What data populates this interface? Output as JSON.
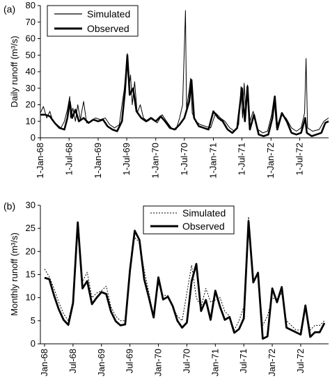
{
  "chart_data": [
    {
      "panel_label": "(a)",
      "type": "line",
      "ylabel": "Daily runoff (m³/s)",
      "ylim": [
        0,
        80
      ],
      "yticks": [
        "0",
        "10",
        "20",
        "30",
        "40",
        "50",
        "60",
        "70",
        "80"
      ],
      "xlim": [
        "1968-01-01",
        "1972-12-31"
      ],
      "xticks": [
        {
          "date": "1968-01-01",
          "label": "1-Jan-68"
        },
        {
          "date": "1968-07-01",
          "label": "1-Jul-68"
        },
        {
          "date": "1969-01-01",
          "label": "1-Jan-69"
        },
        {
          "date": "1969-07-01",
          "label": "1-Jul-69"
        },
        {
          "date": "1970-01-01",
          "label": "1-Jan-70"
        },
        {
          "date": "1970-07-01",
          "label": "1-Jul-70"
        },
        {
          "date": "1971-01-01",
          "label": "1-Jan-71"
        },
        {
          "date": "1971-07-01",
          "label": "1-Jul-71"
        },
        {
          "date": "1972-01-01",
          "label": "1-Jan-72"
        },
        {
          "date": "1972-07-01",
          "label": "1-Jul-72"
        }
      ],
      "legend_position": "top-left",
      "series": [
        {
          "name": "Simulated",
          "style": "thin",
          "points": [
            [
              "1968-01-01",
              15
            ],
            [
              "1968-01-20",
              19
            ],
            [
              "1968-02-10",
              12
            ],
            [
              "1968-03-01",
              16
            ],
            [
              "1968-03-20",
              10
            ],
            [
              "1968-04-15",
              8
            ],
            [
              "1968-05-10",
              6
            ],
            [
              "1968-06-01",
              10
            ],
            [
              "1968-06-20",
              17
            ],
            [
              "1968-07-05",
              25
            ],
            [
              "1968-07-10",
              12
            ],
            [
              "1968-07-25",
              18
            ],
            [
              "1968-08-10",
              10
            ],
            [
              "1968-08-25",
              20
            ],
            [
              "1968-09-10",
              11
            ],
            [
              "1968-10-01",
              22
            ],
            [
              "1968-10-20",
              9
            ],
            [
              "1968-11-15",
              10
            ],
            [
              "1968-12-15",
              12
            ],
            [
              "1969-01-15",
              11
            ],
            [
              "1969-02-15",
              12
            ],
            [
              "1969-03-15",
              8
            ],
            [
              "1969-04-15",
              6
            ],
            [
              "1969-05-15",
              8
            ],
            [
              "1969-06-01",
              20
            ],
            [
              "1969-06-15",
              29
            ],
            [
              "1969-06-25",
              40
            ],
            [
              "1969-07-05",
              51
            ],
            [
              "1969-07-15",
              30
            ],
            [
              "1969-07-25",
              38
            ],
            [
              "1969-08-05",
              20
            ],
            [
              "1969-08-20",
              34
            ],
            [
              "1969-09-05",
              15
            ],
            [
              "1969-09-25",
              20
            ],
            [
              "1969-10-15",
              12
            ],
            [
              "1969-11-10",
              10
            ],
            [
              "1969-12-10",
              12
            ],
            [
              "1970-01-10",
              9
            ],
            [
              "1970-02-10",
              14
            ],
            [
              "1970-03-10",
              10
            ],
            [
              "1970-04-10",
              6
            ],
            [
              "1970-05-10",
              5
            ],
            [
              "1970-06-01",
              12
            ],
            [
              "1970-06-20",
              20
            ],
            [
              "1970-07-08",
              77
            ],
            [
              "1970-07-15",
              18
            ],
            [
              "1970-08-01",
              29
            ],
            [
              "1970-08-10",
              36
            ],
            [
              "1970-08-20",
              15
            ],
            [
              "1970-09-10",
              10
            ],
            [
              "1970-10-10",
              8
            ],
            [
              "1970-11-10",
              7
            ],
            [
              "1970-12-15",
              6
            ],
            [
              "1971-01-15",
              15
            ],
            [
              "1971-02-15",
              12
            ],
            [
              "1971-03-15",
              10
            ],
            [
              "1971-04-15",
              6
            ],
            [
              "1971-05-15",
              4
            ],
            [
              "1971-06-10",
              8
            ],
            [
              "1971-06-25",
              31
            ],
            [
              "1971-07-05",
              12
            ],
            [
              "1971-07-15",
              33
            ],
            [
              "1971-07-25",
              15
            ],
            [
              "1971-08-05",
              32
            ],
            [
              "1971-08-15",
              8
            ],
            [
              "1971-09-10",
              16
            ],
            [
              "1971-10-10",
              5
            ],
            [
              "1971-11-10",
              3
            ],
            [
              "1971-12-10",
              4
            ],
            [
              "1972-01-05",
              14
            ],
            [
              "1972-01-20",
              24
            ],
            [
              "1972-02-05",
              6
            ],
            [
              "1972-03-05",
              14
            ],
            [
              "1972-04-05",
              12
            ],
            [
              "1972-05-10",
              6
            ],
            [
              "1972-06-10",
              4
            ],
            [
              "1972-07-10",
              6
            ],
            [
              "1972-08-01",
              15
            ],
            [
              "1972-08-10",
              48
            ],
            [
              "1972-08-20",
              6
            ],
            [
              "1972-09-20",
              4
            ],
            [
              "1972-11-01",
              5
            ],
            [
              "1972-12-01",
              10
            ],
            [
              "1972-12-31",
              12
            ]
          ]
        },
        {
          "name": "Observed",
          "style": "thick",
          "points": [
            [
              "1968-01-01",
              14
            ],
            [
              "1968-02-01",
              14
            ],
            [
              "1968-03-01",
              13
            ],
            [
              "1968-04-01",
              9
            ],
            [
              "1968-05-01",
              6
            ],
            [
              "1968-06-01",
              5
            ],
            [
              "1968-06-20",
              12
            ],
            [
              "1968-07-05",
              22
            ],
            [
              "1968-07-20",
              12
            ],
            [
              "1968-08-10",
              17
            ],
            [
              "1968-09-01",
              10
            ],
            [
              "1968-10-01",
              12
            ],
            [
              "1968-11-01",
              9
            ],
            [
              "1968-12-01",
              11
            ],
            [
              "1969-01-01",
              10
            ],
            [
              "1969-02-01",
              11
            ],
            [
              "1969-03-01",
              7
            ],
            [
              "1969-04-01",
              5
            ],
            [
              "1969-05-01",
              4
            ],
            [
              "1969-06-01",
              10
            ],
            [
              "1969-06-20",
              28
            ],
            [
              "1969-07-05",
              50
            ],
            [
              "1969-07-20",
              26
            ],
            [
              "1969-08-10",
              30
            ],
            [
              "1969-09-01",
              16
            ],
            [
              "1969-10-01",
              12
            ],
            [
              "1969-11-01",
              10
            ],
            [
              "1969-12-01",
              12
            ],
            [
              "1970-01-01",
              10
            ],
            [
              "1970-02-01",
              13
            ],
            [
              "1970-03-01",
              10
            ],
            [
              "1970-04-01",
              6
            ],
            [
              "1970-05-01",
              5
            ],
            [
              "1970-06-01",
              8
            ],
            [
              "1970-07-01",
              12
            ],
            [
              "1970-08-01",
              22
            ],
            [
              "1970-08-15",
              35
            ],
            [
              "1970-09-01",
              12
            ],
            [
              "1970-10-01",
              7
            ],
            [
              "1970-11-01",
              6
            ],
            [
              "1970-12-01",
              5
            ],
            [
              "1971-01-01",
              16
            ],
            [
              "1971-02-01",
              12
            ],
            [
              "1971-03-01",
              10
            ],
            [
              "1971-04-01",
              5
            ],
            [
              "1971-05-01",
              3
            ],
            [
              "1971-06-01",
              6
            ],
            [
              "1971-07-01",
              30
            ],
            [
              "1971-07-20",
              10
            ],
            [
              "1971-08-05",
              31
            ],
            [
              "1971-08-20",
              5
            ],
            [
              "1971-09-15",
              14
            ],
            [
              "1971-10-15",
              2
            ],
            [
              "1971-11-15",
              1
            ],
            [
              "1971-12-15",
              2
            ],
            [
              "1972-01-10",
              12
            ],
            [
              "1972-01-25",
              25
            ],
            [
              "1972-02-10",
              5
            ],
            [
              "1972-03-10",
              15
            ],
            [
              "1972-04-10",
              10
            ],
            [
              "1972-05-10",
              3
            ],
            [
              "1972-06-10",
              2
            ],
            [
              "1972-07-10",
              3
            ],
            [
              "1972-08-05",
              12
            ],
            [
              "1972-08-15",
              3
            ],
            [
              "1972-09-15",
              1
            ],
            [
              "1972-10-15",
              2
            ],
            [
              "1972-11-15",
              3
            ],
            [
              "1972-12-10",
              9
            ],
            [
              "1972-12-31",
              10
            ]
          ]
        }
      ]
    },
    {
      "panel_label": "(b)",
      "type": "line",
      "ylabel": "Monthly runoff (m³/s)",
      "ylim": [
        0,
        30
      ],
      "yticks": [
        "0",
        "5",
        "10",
        "15",
        "20",
        "25",
        "30"
      ],
      "xlim": [
        "Jan-68",
        "Dec-72"
      ],
      "categories": [
        "Jan-68",
        "Feb-68",
        "Mar-68",
        "Apr-68",
        "May-68",
        "Jun-68",
        "Jul-68",
        "Aug-68",
        "Sep-68",
        "Oct-68",
        "Nov-68",
        "Dec-68",
        "Jan-69",
        "Feb-69",
        "Mar-69",
        "Apr-69",
        "May-69",
        "Jun-69",
        "Jul-69",
        "Aug-69",
        "Sep-69",
        "Oct-69",
        "Nov-69",
        "Dec-69",
        "Jan-70",
        "Feb-70",
        "Mar-70",
        "Apr-70",
        "May-70",
        "Jun-70",
        "Jul-70",
        "Aug-70",
        "Sep-70",
        "Oct-70",
        "Nov-70",
        "Dec-70",
        "Jan-71",
        "Feb-71",
        "Mar-71",
        "Apr-71",
        "May-71",
        "Jun-71",
        "Jul-71",
        "Aug-71",
        "Sep-71",
        "Oct-71",
        "Nov-71",
        "Dec-71",
        "Jan-72",
        "Feb-72",
        "Mar-72",
        "Apr-72",
        "May-72",
        "Jun-72",
        "Jul-72",
        "Aug-72",
        "Sep-72",
        "Oct-72",
        "Nov-72",
        "Dec-72"
      ],
      "xticks": [
        "Jan-68",
        "Jul-68",
        "Jan-69",
        "Jul-69",
        "Jan-70",
        "Jul-70",
        "Jan-71",
        "Jul-71",
        "Jan-72",
        "Jul-72"
      ],
      "legend_position": "top-right",
      "series": [
        {
          "name": "Simulated",
          "style": "dotted",
          "values": [
            16.2,
            14.5,
            12,
            9,
            6.5,
            5,
            9.5,
            25.5,
            13.5,
            15.5,
            10,
            11,
            11.5,
            12.5,
            8,
            6,
            5,
            5,
            17,
            23,
            22,
            16,
            11,
            6,
            13,
            10.5,
            10.5,
            8,
            6,
            5,
            11,
            17,
            10,
            8,
            12,
            9,
            9.5,
            10,
            7,
            6,
            3,
            5,
            8,
            27.5,
            13.5,
            15,
            4,
            6,
            10,
            9.5,
            11,
            5,
            4,
            3,
            3,
            8,
            3,
            4,
            4,
            5
          ]
        },
        {
          "name": "Observed",
          "style": "thick",
          "values": [
            14.3,
            14,
            10.5,
            7.5,
            5.2,
            4.1,
            8.8,
            26.3,
            12,
            13.6,
            8.6,
            10,
            11.2,
            10.8,
            7,
            4.9,
            4,
            4.2,
            15.8,
            24.5,
            22.5,
            14,
            10,
            5.7,
            14.4,
            9.6,
            10.2,
            8.2,
            5,
            3.5,
            4.6,
            13.5,
            17.3,
            7.1,
            9.5,
            5.2,
            11.5,
            8,
            5.2,
            5.8,
            2.4,
            3.2,
            5.5,
            26.6,
            13.3,
            15.4,
            1.1,
            1.6,
            12,
            9,
            12.3,
            3.5,
            3,
            2.5,
            2,
            8.3,
            1.5,
            2.5,
            2.5,
            4.5
          ]
        }
      ]
    }
  ]
}
